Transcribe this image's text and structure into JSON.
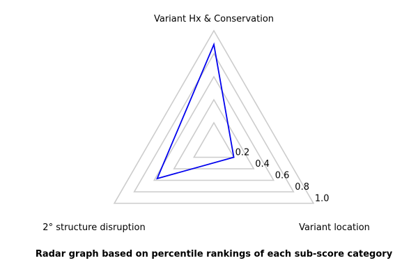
{
  "chart_data": {
    "type": "radar",
    "axes": [
      "Variant Hx & Conservation",
      "Variant location",
      "2° structure disruption"
    ],
    "ticks": [
      0.2,
      0.4,
      0.6,
      0.8,
      1.0
    ],
    "tick_labels": [
      "0.2",
      "0.4",
      "0.6",
      "0.8",
      "1.0"
    ],
    "rlim": [
      0,
      1.0
    ],
    "series": [
      {
        "values": [
          0.88,
          0.2,
          0.57
        ]
      }
    ],
    "caption": "Radar graph based on percentile rankings of each sub-score category",
    "colors": {
      "series": "#0000ee",
      "grid": "#cccccc"
    }
  }
}
